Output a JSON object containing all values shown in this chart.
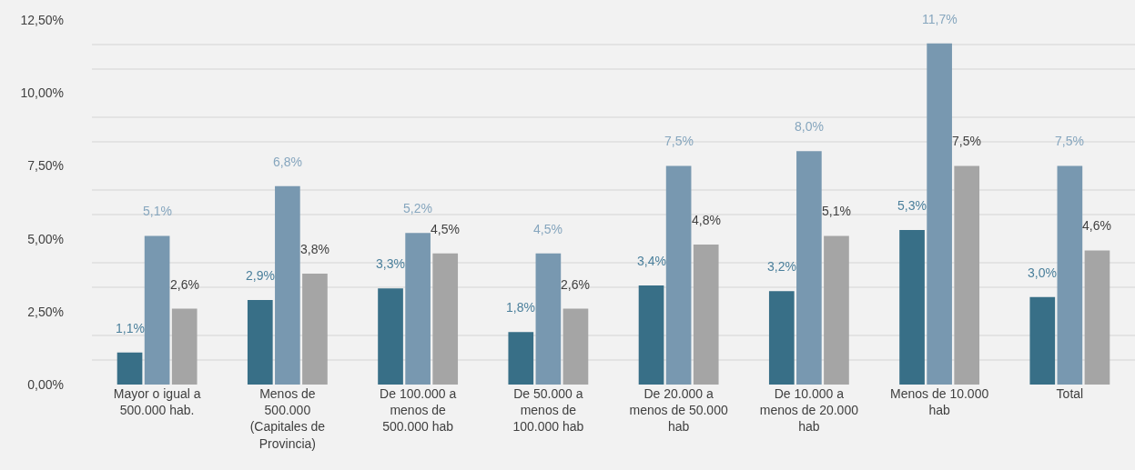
{
  "chart_data": {
    "type": "bar",
    "categories": [
      "Mayor o igual a 500.000 hab.",
      "Menos de 500.000 (Capitales de Provincia)",
      "De 100.000 a menos de 500.000 hab",
      "De 50.000 a menos de 100.000 hab",
      "De 20.000 a menos de 50.000 hab",
      "De 10.000 a menos de 20.000 hab",
      "Menos de 10.000 hab",
      "Total"
    ],
    "series": [
      {
        "color": "#386f87",
        "values": [
          1.1,
          2.9,
          3.3,
          1.8,
          3.4,
          3.2,
          5.3,
          3.0
        ],
        "value_labels": [
          "1,1%",
          "2,9%",
          "3,3%",
          "1,8%",
          "3,4%",
          "3,2%",
          "5,3%",
          "3,0%"
        ]
      },
      {
        "color": "#7898b0",
        "values": [
          5.1,
          6.8,
          5.2,
          4.5,
          7.5,
          8.0,
          11.7,
          7.5
        ],
        "value_labels": [
          "5,1%",
          "6,8%",
          "5,2%",
          "4,5%",
          "7,5%",
          "8,0%",
          "11,7%",
          "7,5%"
        ]
      },
      {
        "color": "#a5a5a5",
        "values": [
          2.6,
          3.8,
          4.5,
          2.6,
          4.8,
          5.1,
          7.5,
          4.6
        ],
        "value_labels": [
          "2,6%",
          "3,8%",
          "4,5%",
          "2,6%",
          "4,8%",
          "5,1%",
          "7,5%",
          "4,6%"
        ]
      }
    ],
    "ylim": [
      0,
      12.5
    ],
    "yticks": [
      {
        "value": 0,
        "label": "0,00%"
      },
      {
        "value": 0.83,
        "label": null
      },
      {
        "value": 1.67,
        "label": null
      },
      {
        "value": 2.5,
        "label": "2,50%"
      },
      {
        "value": 3.33,
        "label": null
      },
      {
        "value": 4.17,
        "label": null
      },
      {
        "value": 5,
        "label": "5,00%"
      },
      {
        "value": 5.83,
        "label": null
      },
      {
        "value": 6.67,
        "label": null
      },
      {
        "value": 7.5,
        "label": "7,50%"
      },
      {
        "value": 8.33,
        "label": null
      },
      {
        "value": 9.17,
        "label": null
      },
      {
        "value": 10,
        "label": "10,00%"
      },
      {
        "value": 10.83,
        "label": null
      },
      {
        "value": 11.67,
        "label": null
      },
      {
        "value": 12.5,
        "label": "12,50%"
      }
    ],
    "grid": "y"
  }
}
